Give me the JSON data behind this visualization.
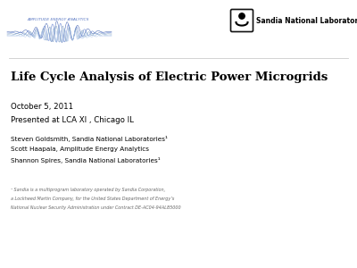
{
  "bg_color": "#ffffff",
  "title": "Life Cycle Analysis of Electric Power Microgrids",
  "date": "October 5, 2011",
  "presented": "Presented at LCA XI , Chicago IL",
  "authors_line1": "Steven Goldsmith, Sandia National Laboratories¹",
  "authors_line2": "Scott Haapala, Amplitude Energy Analytics",
  "authors_line3": "Shannon Spires, Sandia National Laboratories¹",
  "footnote_line1": "¹ Sandia is a multiprogram laboratory operated by Sandia Corporation,",
  "footnote_line2": "a Lockheed Martin Company, for the United States Department of Energy’s",
  "footnote_line3": "National Nuclear Security Administration under Contract DE-AC04-94AL85000",
  "snl_logo_text": "Sandia National Laboratories",
  "amplitude_text": "AMPLITUDE ENERGY ANALYTICS",
  "title_fontsize": 9.5,
  "date_fontsize": 6.2,
  "presented_fontsize": 6.2,
  "authors_fontsize": 5.2,
  "footnote_fontsize": 3.5,
  "snl_logo_fontsize": 5.5,
  "amplitude_fontsize": 3.2,
  "text_color": "#000000",
  "gray_color": "#666666",
  "wave_colors": [
    "#3355aa",
    "#5577cc",
    "#7799bb",
    "#99bbdd",
    "#bbccee"
  ],
  "snl_icon_color": "#111111"
}
